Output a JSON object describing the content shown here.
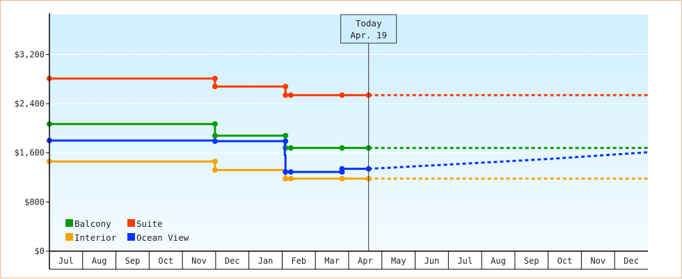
{
  "chart_data": {
    "type": "line",
    "title": "",
    "xlabel": "",
    "ylabel": "",
    "ylim": [
      0,
      3850
    ],
    "yticks": [
      {
        "value": 0,
        "label": "$0"
      },
      {
        "value": 800,
        "label": "$800"
      },
      {
        "value": 1600,
        "label": "$1,600"
      },
      {
        "value": 2400,
        "label": "$2,400"
      },
      {
        "value": 3200,
        "label": "$3,200"
      }
    ],
    "months": [
      "Jul",
      "Aug",
      "Sep",
      "Oct",
      "Nov",
      "Dec",
      "Jan",
      "Feb",
      "Mar",
      "Apr",
      "May",
      "Jun",
      "Jul",
      "Aug",
      "Sep",
      "Oct",
      "Nov",
      "Dec"
    ],
    "today": {
      "title": "Today",
      "date": "Apr. 19",
      "x": 9.6
    },
    "legend": {
      "position": "bottom-left"
    },
    "colors": {
      "plot_top": "#cfefff",
      "plot_bottom": "#f4fbff",
      "axis": "#000000",
      "grid": "#ffffff"
    },
    "series": [
      {
        "name": "Balcony",
        "color": "#0a9a0a",
        "points": [
          [
            0,
            2070
          ],
          [
            4.98,
            2070
          ],
          [
            4.98,
            1880
          ],
          [
            7.1,
            1880
          ],
          [
            7.1,
            1680
          ],
          [
            7.26,
            1680
          ],
          [
            8.8,
            1680
          ],
          [
            9.6,
            1680
          ]
        ],
        "markers": [
          [
            0,
            2070
          ],
          [
            4.98,
            2070
          ],
          [
            4.98,
            1880
          ],
          [
            7.1,
            1880
          ],
          [
            7.1,
            1680
          ],
          [
            7.26,
            1680
          ],
          [
            8.8,
            1680
          ],
          [
            9.6,
            1680
          ]
        ],
        "forecast": [
          [
            9.6,
            1680
          ],
          [
            18,
            1680
          ]
        ]
      },
      {
        "name": "Suite",
        "color": "#ff3a00",
        "points": [
          [
            0,
            2810
          ],
          [
            4.98,
            2810
          ],
          [
            4.98,
            2680
          ],
          [
            7.1,
            2680
          ],
          [
            7.1,
            2540
          ],
          [
            7.26,
            2540
          ],
          [
            8.8,
            2540
          ],
          [
            9.6,
            2540
          ]
        ],
        "markers": [
          [
            0,
            2810
          ],
          [
            4.98,
            2810
          ],
          [
            4.98,
            2680
          ],
          [
            7.1,
            2680
          ],
          [
            7.1,
            2540
          ],
          [
            7.26,
            2540
          ],
          [
            8.8,
            2540
          ],
          [
            9.6,
            2540
          ]
        ],
        "forecast": [
          [
            9.6,
            2540
          ],
          [
            18,
            2540
          ]
        ]
      },
      {
        "name": "Interior",
        "color": "#f5a300",
        "points": [
          [
            0,
            1460
          ],
          [
            4.98,
            1460
          ],
          [
            4.98,
            1320
          ],
          [
            7.1,
            1320
          ],
          [
            7.1,
            1180
          ],
          [
            7.26,
            1180
          ],
          [
            8.8,
            1180
          ],
          [
            9.6,
            1180
          ]
        ],
        "markers": [
          [
            0,
            1460
          ],
          [
            4.98,
            1460
          ],
          [
            4.98,
            1320
          ],
          [
            7.1,
            1180
          ],
          [
            7.26,
            1180
          ],
          [
            8.8,
            1180
          ],
          [
            9.6,
            1180
          ]
        ],
        "forecast": [
          [
            9.6,
            1180
          ],
          [
            18,
            1180
          ]
        ]
      },
      {
        "name": "Ocean View",
        "color": "#0033ff",
        "points": [
          [
            0,
            1800
          ],
          [
            4.98,
            1800
          ],
          [
            4.98,
            1790
          ],
          [
            7.08,
            1790
          ],
          [
            7.08,
            1560
          ],
          [
            7.1,
            1560
          ],
          [
            7.1,
            1290
          ],
          [
            7.26,
            1290
          ],
          [
            8.8,
            1290
          ],
          [
            8.8,
            1340
          ],
          [
            9.6,
            1340
          ]
        ],
        "markers": [
          [
            0,
            1800
          ],
          [
            4.98,
            1790
          ],
          [
            7.1,
            1790
          ],
          [
            7.1,
            1290
          ],
          [
            7.26,
            1290
          ],
          [
            8.8,
            1290
          ],
          [
            8.8,
            1340
          ],
          [
            9.6,
            1340
          ]
        ],
        "forecast": [
          [
            9.6,
            1340
          ],
          [
            12,
            1410
          ],
          [
            15,
            1500
          ],
          [
            18,
            1610
          ]
        ]
      }
    ]
  }
}
